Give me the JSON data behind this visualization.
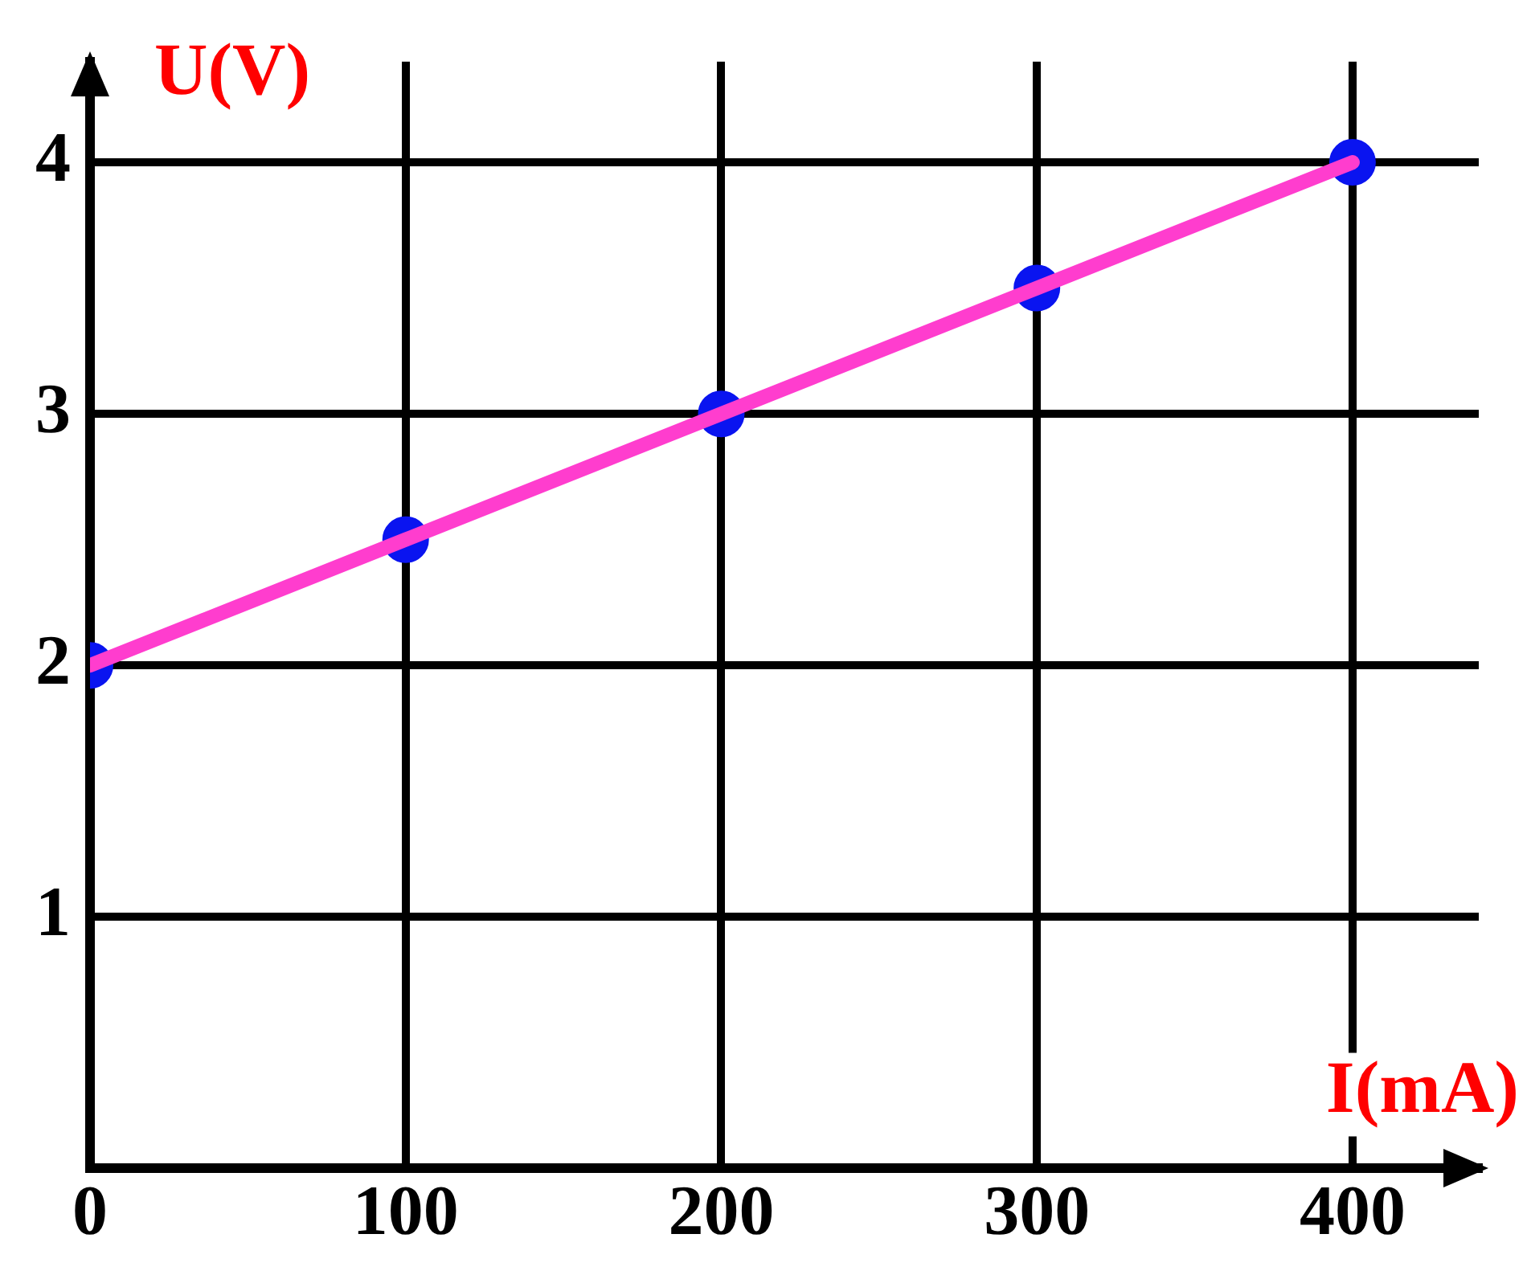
{
  "chart_data": {
    "type": "line",
    "xlabel": "I(mA)",
    "ylabel": "U(V)",
    "x": [
      0,
      100,
      200,
      300,
      400
    ],
    "series": [
      {
        "color": "#ff3dce",
        "values": [
          2,
          2.5,
          3,
          3.5,
          4
        ],
        "marker": "none"
      },
      {
        "type": "scatter",
        "color": "#0a14f0",
        "values": [
          2,
          2.5,
          3,
          3.5,
          4
        ],
        "marker": "circle"
      }
    ],
    "xlim": [
      0,
      440
    ],
    "ylim": [
      0,
      4.4
    ],
    "xticks": [
      0,
      100,
      200,
      300,
      400
    ],
    "yticks": [
      {
        "value": 0,
        "label": null
      },
      1,
      2,
      3,
      4
    ],
    "grid": true,
    "legend": false
  }
}
